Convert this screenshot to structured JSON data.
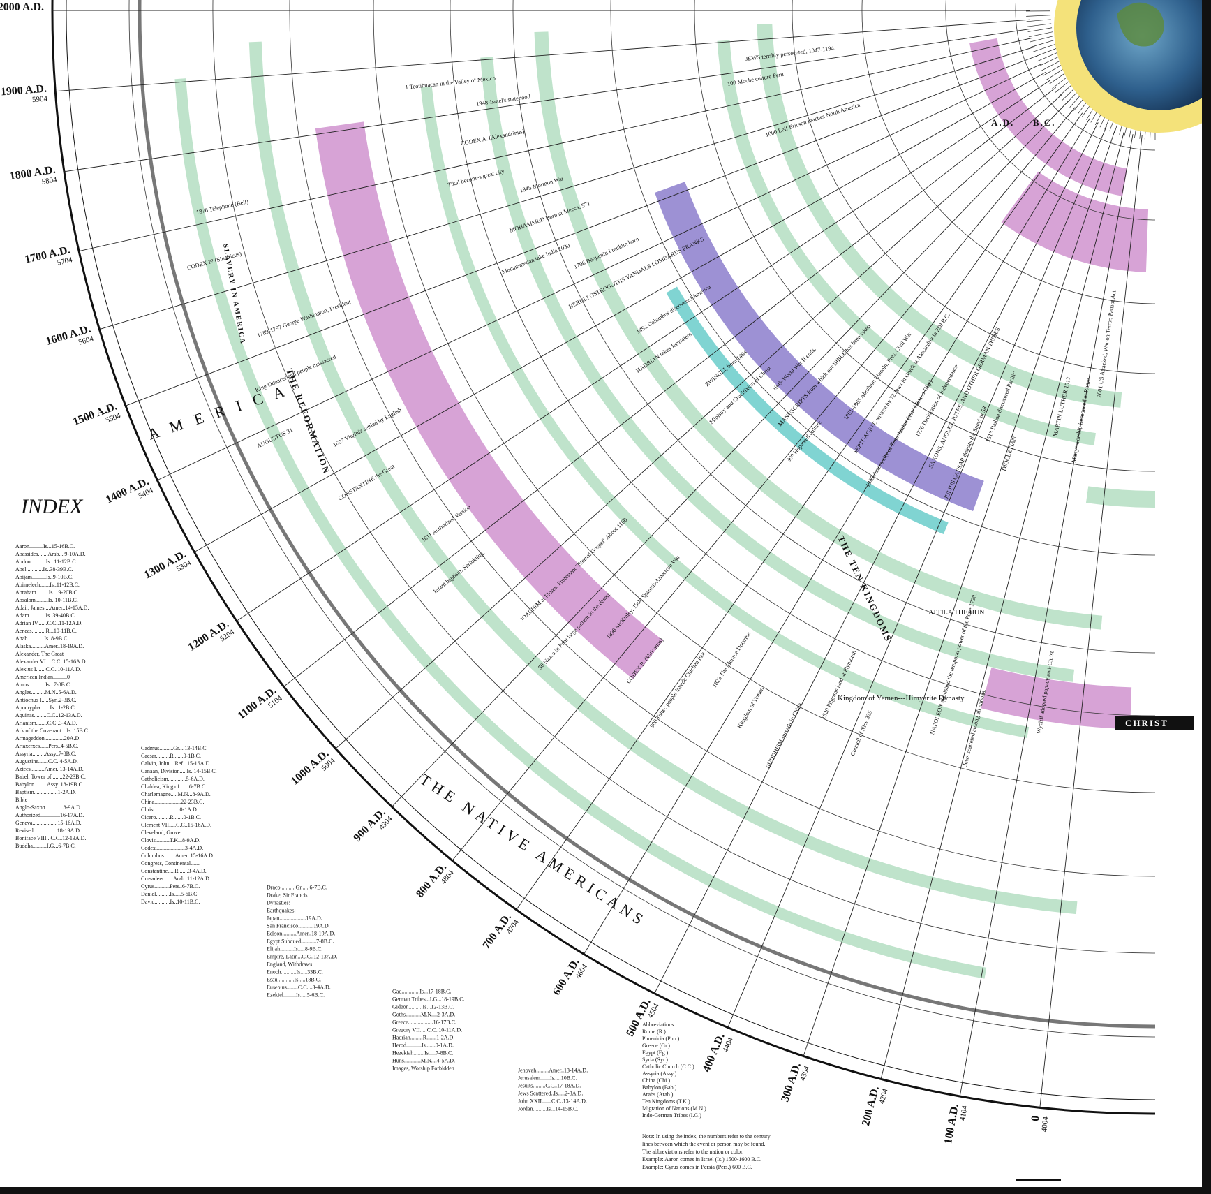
{
  "header": {
    "ad": "A.D.",
    "bc": "B.C."
  },
  "centuries": [
    {
      "ad": "2000 A.D."
    },
    {
      "ad": "1900 A.D.",
      "am": "5904"
    },
    {
      "ad": "1800 A.D.",
      "am": "5804"
    },
    {
      "ad": "1700 A.D.",
      "am": "5704"
    },
    {
      "ad": "1600 A.D.",
      "am": "5604"
    },
    {
      "ad": "1500 A.D.",
      "am": "5504"
    },
    {
      "ad": "1400 A.D.",
      "am": "5404"
    },
    {
      "ad": "1300 A.D.",
      "am": "5304"
    },
    {
      "ad": "1200 A.D.",
      "am": "5204"
    },
    {
      "ad": "1100 A.D.",
      "am": "5104"
    },
    {
      "ad": "1000 A.D.",
      "am": "5004"
    },
    {
      "ad": "900 A.D.",
      "am": "4904"
    },
    {
      "ad": "800 A.D.",
      "am": "4804"
    },
    {
      "ad": "700 A.D.",
      "am": "4704"
    },
    {
      "ad": "600 A.D.",
      "am": "4604"
    },
    {
      "ad": "500 A.D.",
      "am": "4504"
    },
    {
      "ad": "400 A.D.",
      "am": "4404"
    },
    {
      "ad": "300 A.D.",
      "am": "4304"
    },
    {
      "ad": "200 A.D.",
      "am": "4204"
    },
    {
      "ad": "100 A.D.",
      "am": "4104"
    },
    {
      "ad": "0",
      "am": "4004"
    }
  ],
  "bands": [
    "THE NATIVE AMERICANS",
    "A M E R I C A",
    "THE REFORMATION",
    "THE TEN KINGDOMS",
    "CHRIST",
    "Kingdom of Yemen---Himyarite Dynasty",
    "SLAVERY IN AMERICA",
    "ATTILA THE HUN"
  ],
  "events": [
    "2001 US Attacked, War on Terror, Patriot Act",
    "1945-World War II ends.",
    "1948-Israel's statehood",
    "1898 McKinley, 1904 Spanish-American War",
    "1876 Telephone (Bell)",
    "1861-1865 Abraham Lincoln, Pres. Civil War",
    "1845 Mormon War",
    "1823 The Monroe Doctrine",
    "1789-1797 George Washington, President",
    "1776 Declaration of Independence",
    "1706 Benjamin Franklin born",
    "1620 Pilgrims land at Plymouth",
    "1607 Virginia settled by English",
    "1513 Balboa discovered Pacific",
    "1492 Columbus discovered America",
    "NAPOLEON abolished the temporal power of the Pope 1798.",
    "1611 Authorized Version",
    "MARTIN LUTHER 1517",
    "ZWINGLI, born 1484",
    "Wycliff adopted papacy anti-Christ",
    "JOACHIM at Flores. Protestant \"Eternal Gospel\" About 1160",
    "JEWS terribly persecuted, 1047-1194.",
    "MANUSCRIPTS from which our BIBLE has been taken",
    "CODEX A. (Alexandrinus)",
    "CODEX B. (Vaticanus)",
    "CODEX ?? (Sinaiticus)",
    "SEPTUAGINT, written by 72 Jews in Greek at Alexandria in 280 B.C.",
    "MOHAMMED Born at Mecca, 571",
    "Kingdom of Yemen",
    "King Odoacer and people massacred",
    "SAXONS, ANGLES, JUTES, AND OTHER GERMAN TRIBES",
    "HERULI OSTROGOTHS VANDALS LOMBARDS FRANKS",
    "Council of Nice 325",
    "CONSTANTINE the Great",
    "DIOCLETIAN",
    "HADRIAN takes Jerusalem",
    "Jews scattered among all nations.",
    "Infant baptism. Sprinkling.",
    "Martyr worship introduced at Rome.",
    "Ministry and Crucifixion of Christ",
    "1 Teotihuacan in the Valley of Mexico",
    "50 Nazca in Peru large pattern in the desert",
    "100 Moche culture Peru",
    "300 Hopewell culture",
    "Tikal becomes great city",
    "900 Toltec people invade Chichen Itza",
    "1000 Leif Ericson reaches North America",
    "1325 Aztecs city of Tenochtitlan (now Mexico City)",
    "Mohammedan take India 1030",
    "BUDDHISM spreads in China",
    "AUGUSTUS 31",
    "JULIUS CAESAR defeats the Suevi in 58"
  ],
  "index": {
    "title": "INDEX",
    "columns": [
      [
        "Aaron..........Is...15-16B.C.",
        "Abassides.......Arab....9-10A.D.",
        "Abdon...........Is...11-12B.C.",
        "Abel............Is..38-39B.C.",
        "Abijam..........Is..9-10B.C.",
        "Abimelech.......Is..11-12B.C.",
        "Abraham.........Is..19-20B.C.",
        "Absalom.........Is..10-11B.C.",
        "Adair, James....Amer..14-15A.D.",
        "Adam............Is..39-40B.C.",
        "Adrian IV.......C.C..11-12A.D.",
        "Aeneas..........R...10-11B.C.",
        "Ahab............Is..8-9B.C.",
        "Alaska..........Amer..18-19A.D.",
        "Alexander, The Great",
        "Alexander VI....C.C..15-16A.D.",
        "Alexius I.......C.C..10-11A.D.",
        "American Indian..........0",
        "Amos............Is...7-8B.C.",
        "Angles..........M.N..5-6A.D.",
        "Antiochus I.....Syr..2-3B.C.",
        "Apocrypha.......Is...1-2B.C.",
        "Aquinas.........C.C..12-13A.D.",
        "Arianism........C.C..3-4A.D.",
        "Ark of the Covenant....Is..15B.C.",
        "Armageddon..............20A.D.",
        "Artaxerxes......Pers..4-5B.C.",
        "Assyria.........Assy..7-8B.C.",
        "Augustine.......C.C..4-5A.D.",
        "Aztecs..........Amer..13-14A.D.",
        "Babel, Tower of........22-23B.C.",
        "Babylon.........Assy..18-19B.C.",
        "Baptism.................1-2A.D.",
        "Bible",
        "Anglo-Saxon.............8-9A.D.",
        "Authorized..............16-17A.D.",
        "Geneva..................15-16A.D.",
        "Revised.................18-19A.D.",
        "Boniface VIII...C.C..12-13A.D.",
        "Buddha..........I.G...6-7B.C."
      ],
      [
        "Cadmus..........Gr....13-14B.C.",
        "Caesar..........R.......0-1B.C.",
        "Calvin, John....Ref...15-16A.D.",
        "Canaan, Division.....Is..14-15B.C.",
        "Catholicism.............5-6A.D.",
        "Chaldea, King of.......6-7B.C.",
        "Charlemagne.....M.N...8-9A.D.",
        "China...................22-23B.C.",
        "Christ..................0-1A.D.",
        "Cicero..........R.......0-1B.C.",
        "Clement VII.....C.C..15-16A.D.",
        "Cleveland, Grover.........",
        "Clovis..........T.K...8-9A.D.",
        "Codex.....................3-4A.D.",
        "Columbus........Amer..15-16A.D.",
        "Congress, Continental.......",
        "Constantine.....R.......3-4A.D.",
        "Crusaders.......Arab..11-12A.D.",
        "Cyrus...........Pers..6-7B.C.",
        "Daniel..........Is.....5-6B.C.",
        "David...........Is..10-11B.C."
      ],
      [
        "Draco...........Gr......6-7B.C.",
        "Drake, Sir Francis",
        "Dynasties:",
        "Earthquakes:",
        "Japan...................19A.D.",
        "San Francisco...........19A.D.",
        "Edison..........Amer..18-19A.D.",
        "Egypt Subdued...........7-8B.C.",
        "Elijah..........Is.....8-9B.C.",
        "Empire, Latin...C.C..12-13A.D.",
        "England, Withdraws",
        "Enoch...........Is.....33B.C.",
        "Esau............Is.....18B.C.",
        "Eusebius........C.C....3-4A.D.",
        "Ezekiel.........Is.....5-6B.C."
      ],
      [
        "Gad.............Is...17-18B.C.",
        "German Tribes...I.G...18-19B.C.",
        "Gideon..........Is...12-13B.C.",
        "Goths...........M.N....2-3A.D.",
        "Greece..................16-17B.C.",
        "Gregory VII.....C.C..10-11A.D.",
        "Hadrian.........R.......1-2A.D.",
        "Herod...........Is.......0-1A.D.",
        "Hezekiah........Is.....7-8B.C.",
        "Huns............M.N....4-5A.D.",
        "Images, Worship Forbidden"
      ],
      [
        "Jehovah.........Amer..13-14A.D.",
        "Jerusalem.......Is.....10B.C.",
        "Jesuits.........C.C..17-18A.D.",
        "Jews Scattered..Is.....2-3A.D.",
        "John XXII.......C.C..13-14A.D.",
        "Jordan..........Is...14-15B.C."
      ]
    ],
    "abbreviations": [
      "Abbreviations:",
      "Rome (R.)",
      "Phoenicia (Pho.)",
      "Greece (Gr.)",
      "Egypt (Eg.)",
      "Syria (Syr.)",
      "Catholic Church (C.C.)",
      "Assyria (Assy.)",
      "China (Chi.)",
      "Babylon (Bab.)",
      "Arabs (Arab.)",
      "Ten Kingdoms (T.K.)",
      "Migration of Nations (M.N.)",
      "Indo-German Tribes (I.G.)"
    ],
    "notes": [
      "Note:  In using the index, the numbers refer to the century",
      "lines between which the event or person may be found.",
      "The abbreviations refer to the nation or color.",
      "Example: Aaron comes in Israel (Is.) 1500-1600 B.C.",
      "Example: Cyrus comes in Persia (Pers.) 600 B.C."
    ]
  }
}
